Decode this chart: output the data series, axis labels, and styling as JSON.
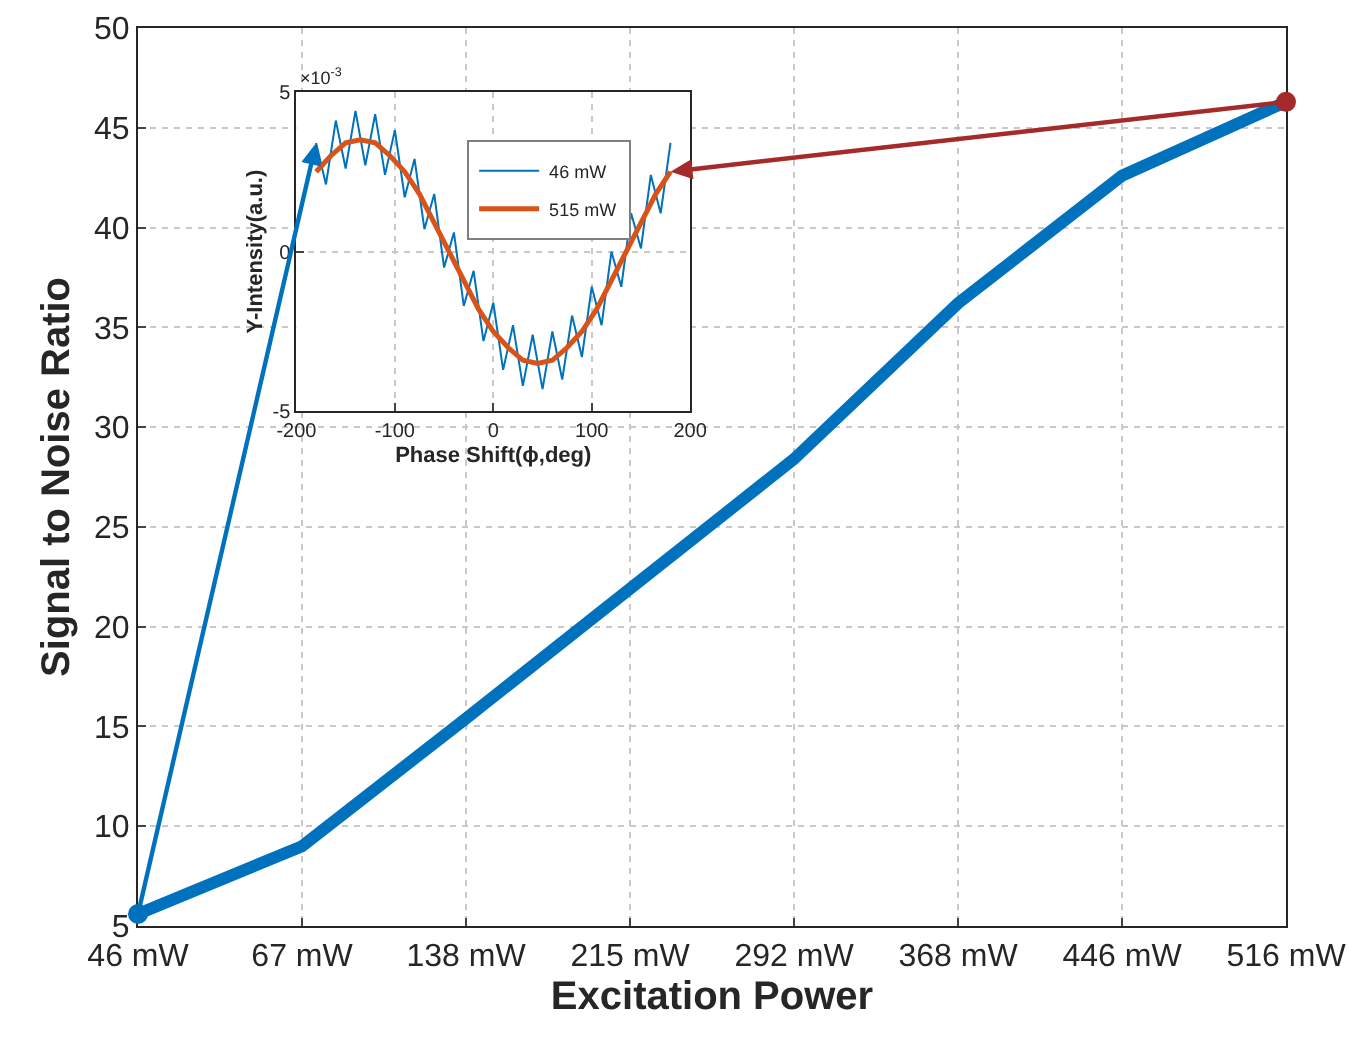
{
  "chart_data": [
    {
      "type": "line",
      "xlabel": "Excitation Power",
      "ylabel": "Signal to Noise Ratio",
      "categories": [
        "46 mW",
        "67 mW",
        "138 mW",
        "215 mW",
        "292 mW",
        "368 mW",
        "446 mW",
        "516 mW"
      ],
      "series": [
        {
          "color": "#0072bd",
          "values": [
            5.6,
            9.0,
            15.4,
            21.9,
            28.4,
            36.2,
            42.6,
            46.3
          ]
        }
      ],
      "ylim": [
        5,
        50
      ],
      "yticks": [
        5,
        10,
        15,
        20,
        25,
        30,
        35,
        40,
        45,
        50
      ],
      "grid": true,
      "legend": false,
      "marker": "none",
      "line_style": "solid"
    },
    {
      "type": "line",
      "xlabel": "Phase Shift(ϕ,deg)",
      "ylabel": "Y-Intensity(a.u.)",
      "annotations": [
        "×10$^{-3}$"
      ],
      "series": [
        {
          "name": "46 mW",
          "color": "#0072bd",
          "x": [
            -180,
            -170,
            -160,
            -150,
            -140,
            -130,
            -120,
            -110,
            -100,
            -90,
            -80,
            -70,
            -60,
            -50,
            -40,
            -30,
            -20,
            -10,
            0,
            10,
            20,
            30,
            40,
            50,
            60,
            70,
            80,
            90,
            100,
            110,
            120,
            130,
            140,
            150,
            160,
            170,
            180
          ],
          "values": [
            3.4,
            2.1,
            4.1,
            2.6,
            4.4,
            2.7,
            4.3,
            2.4,
            3.8,
            1.7,
            2.9,
            0.7,
            1.8,
            -0.5,
            0.6,
            -1.7,
            -0.6,
            -2.8,
            -1.6,
            -3.7,
            -2.3,
            -4.2,
            -2.6,
            -4.3,
            -2.5,
            -4.0,
            -2.0,
            -3.3,
            -1.1,
            -2.3,
            0.0,
            -1.1,
            1.2,
            0.1,
            2.4,
            1.2,
            3.4
          ]
        },
        {
          "name": "515 mW",
          "color": "#d95319",
          "x": [
            -180,
            -165,
            -150,
            -135,
            -120,
            -105,
            -90,
            -75,
            -60,
            -45,
            -30,
            -15,
            0,
            15,
            30,
            45,
            60,
            75,
            90,
            105,
            120,
            135,
            150,
            165,
            180
          ],
          "values": [
            2.5,
            3.0,
            3.4,
            3.5,
            3.4,
            3.0,
            2.5,
            1.8,
            0.9,
            0.0,
            -0.9,
            -1.8,
            -2.5,
            -3.0,
            -3.4,
            -3.5,
            -3.4,
            -3.0,
            -2.5,
            -1.8,
            -0.9,
            0.0,
            0.9,
            1.8,
            2.5
          ]
        }
      ],
      "xlim": [
        -200,
        200
      ],
      "xticks": [
        -200,
        -100,
        0,
        100,
        200
      ],
      "ylim": [
        -5,
        5
      ],
      "yticks": [
        -5,
        0,
        5
      ],
      "grid": true,
      "legend": "top right",
      "marker": "none",
      "line_style": "solid"
    }
  ]
}
